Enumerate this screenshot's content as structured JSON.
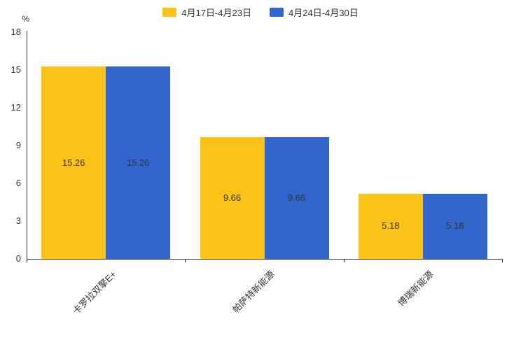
{
  "chart_data": {
    "type": "bar",
    "title": "",
    "xlabel": "",
    "ylabel": "",
    "y_unit": "%",
    "ylim": [
      0,
      18
    ],
    "yticks": [
      0,
      3,
      6,
      9,
      12,
      15,
      18
    ],
    "categories": [
      "卡罗拉双擎E+",
      "帕萨特新能源",
      "博瑞新能源"
    ],
    "series": [
      {
        "name": "4月17日-4月23日",
        "color": "#FBC318",
        "values": [
          15.26,
          9.66,
          5.18
        ]
      },
      {
        "name": "4月24日-4月30日",
        "color": "#3366CC",
        "values": [
          15.26,
          9.66,
          5.18
        ]
      }
    ],
    "legend_position": "top-center",
    "grid": false,
    "value_labels": "inside-middle",
    "value_label_color": "#333333",
    "axis_color": "#333333"
  }
}
